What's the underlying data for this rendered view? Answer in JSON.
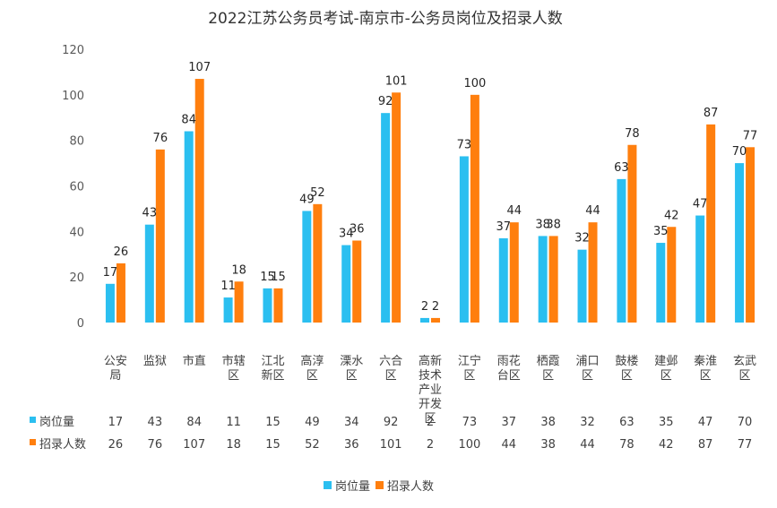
{
  "chart_data": {
    "type": "bar",
    "title": "2022江苏公务员考试-南京市-公务员岗位及招录人数",
    "xlabel": "",
    "ylabel": "",
    "ylim": [
      0,
      120
    ],
    "yticks": [
      0,
      20,
      40,
      60,
      80,
      100,
      120
    ],
    "grid": false,
    "legend_position": "bottom",
    "categories": [
      [
        "公安",
        "局"
      ],
      [
        "监狱"
      ],
      [
        "市直"
      ],
      [
        "市辖",
        "区"
      ],
      [
        "江北",
        "新区"
      ],
      [
        "高淳",
        "区"
      ],
      [
        "溧水",
        "区"
      ],
      [
        "六合",
        "区"
      ],
      [
        "高新",
        "技术",
        "产业",
        "开发",
        "区"
      ],
      [
        "江宁",
        "区"
      ],
      [
        "雨花",
        "台区"
      ],
      [
        "栖霞",
        "区"
      ],
      [
        "浦口",
        "区"
      ],
      [
        "鼓楼",
        "区"
      ],
      [
        "建邺",
        "区"
      ],
      [
        "秦淮",
        "区"
      ],
      [
        "玄武",
        "区"
      ]
    ],
    "series": [
      {
        "name": "岗位量",
        "color": "#2BBFF0",
        "values": [
          17,
          43,
          84,
          11,
          15,
          49,
          34,
          92,
          2,
          73,
          37,
          38,
          32,
          63,
          35,
          47,
          70
        ]
      },
      {
        "name": "招录人数",
        "color": "#FF7F0E",
        "values": [
          26,
          76,
          107,
          18,
          15,
          52,
          36,
          101,
          2,
          100,
          44,
          38,
          44,
          78,
          42,
          87,
          77
        ]
      }
    ]
  }
}
